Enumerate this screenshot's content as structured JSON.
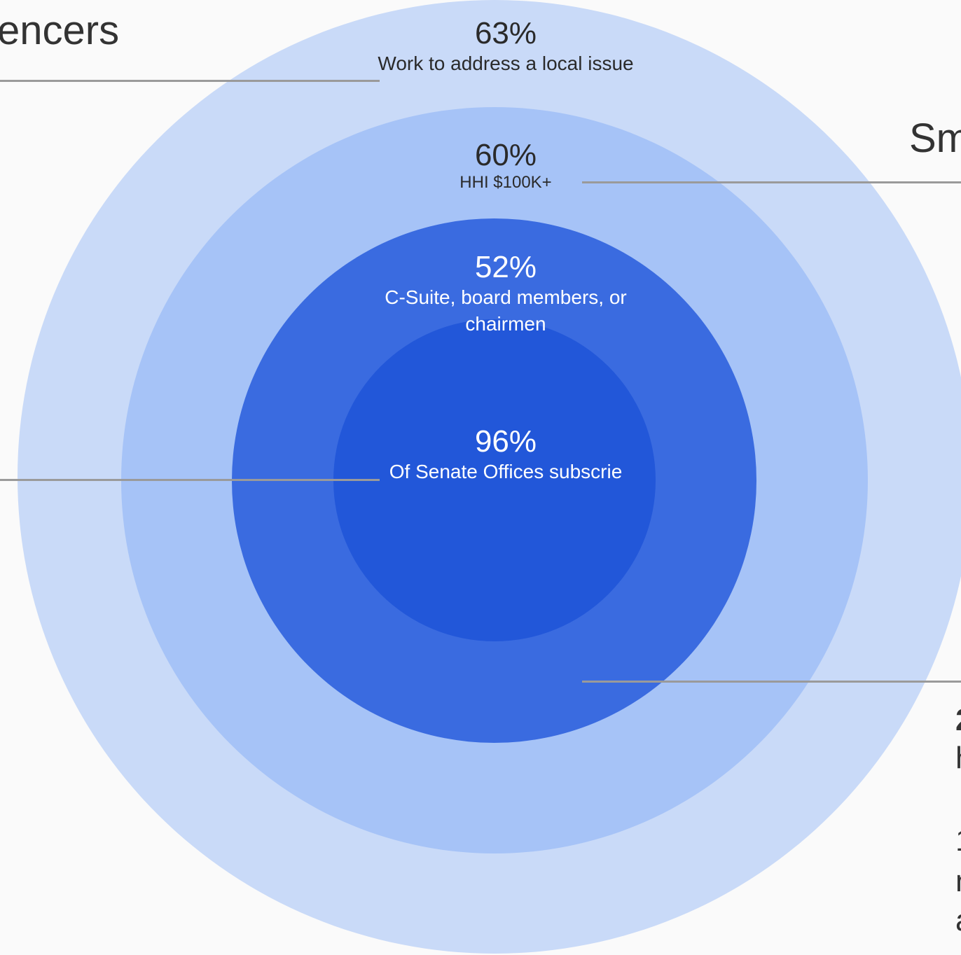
{
  "headings": {
    "left": "encers",
    "right": "Sm"
  },
  "rings": {
    "outer": {
      "percent": "63%",
      "description": "Work  to address a local issue",
      "color": "#c9daf8"
    },
    "second": {
      "percent": "60%",
      "description": "HHI $100K+",
      "color": "#a6c3f7"
    },
    "third": {
      "percent": "52%",
      "description": "C-Suite, board members, or chairmen",
      "color": "#3a6be0"
    },
    "core": {
      "percent": "96%",
      "description": "Of Senate Offices subscrie",
      "color": "#2257d9"
    }
  },
  "leader_color": "#9a9a9a",
  "right_fragments": [
    "2",
    "h",
    "1",
    "n",
    "a"
  ]
}
